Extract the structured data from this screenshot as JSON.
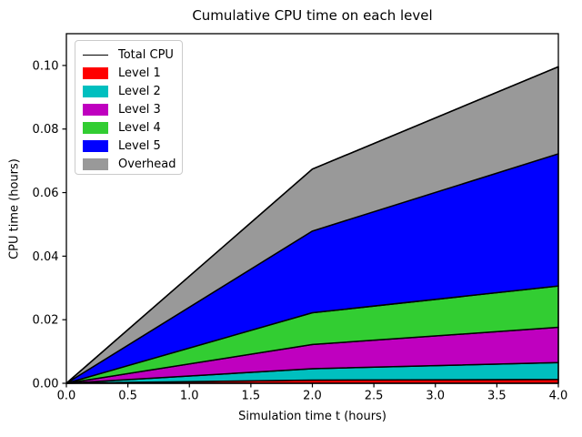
{
  "title": "Cumulative CPU time on each level",
  "x_label": "Simulation time t (hours)",
  "y_label": "CPU time (hours)",
  "chart_data": {
    "type": "area",
    "stacked": true,
    "title": "Cumulative CPU time on each level",
    "xlabel": "Simulation time t (hours)",
    "ylabel": "CPU time (hours)",
    "x": [
      0,
      2,
      4
    ],
    "series": [
      {
        "name": "Level 1",
        "color": "#ff0000",
        "values": [
          0,
          0.001,
          0.0012
        ]
      },
      {
        "name": "Level 2",
        "color": "#00bfbf",
        "values": [
          0,
          0.0036,
          0.0053
        ]
      },
      {
        "name": "Level 3",
        "color": "#bf00bf",
        "values": [
          0,
          0.0076,
          0.0111
        ]
      },
      {
        "name": "Level 4",
        "color": "#32cd32",
        "values": [
          0,
          0.01,
          0.013
        ]
      },
      {
        "name": "Level 5",
        "color": "#0000ff",
        "values": [
          0,
          0.0257,
          0.0416
        ]
      },
      {
        "name": "Overhead",
        "color": "#999999",
        "values": [
          0,
          0.0195,
          0.0274
        ]
      }
    ],
    "total_line": {
      "name": "Total CPU",
      "color": "#000000",
      "values": [
        0,
        0.0674,
        0.0996
      ]
    },
    "xlim": [
      0,
      4
    ],
    "ylim": [
      0,
      0.11
    ],
    "x_tick_values": [
      0.0,
      0.5,
      1.0,
      1.5,
      2.0,
      2.5,
      3.0,
      3.5,
      4.0
    ],
    "x_tick_labels": [
      "0.0",
      "0.5",
      "1.0",
      "1.5",
      "2.0",
      "2.5",
      "3.0",
      "3.5",
      "4.0"
    ],
    "y_tick_values": [
      0.0,
      0.02,
      0.04,
      0.06,
      0.08,
      0.1
    ],
    "y_tick_labels": [
      "0.00",
      "0.02",
      "0.04",
      "0.06",
      "0.08",
      "0.10"
    ],
    "grid": false,
    "legend_position": "upper left",
    "legend_entries": [
      "Total CPU",
      "Level 1",
      "Level 2",
      "Level 3",
      "Level 4",
      "Level 5",
      "Overhead"
    ]
  }
}
